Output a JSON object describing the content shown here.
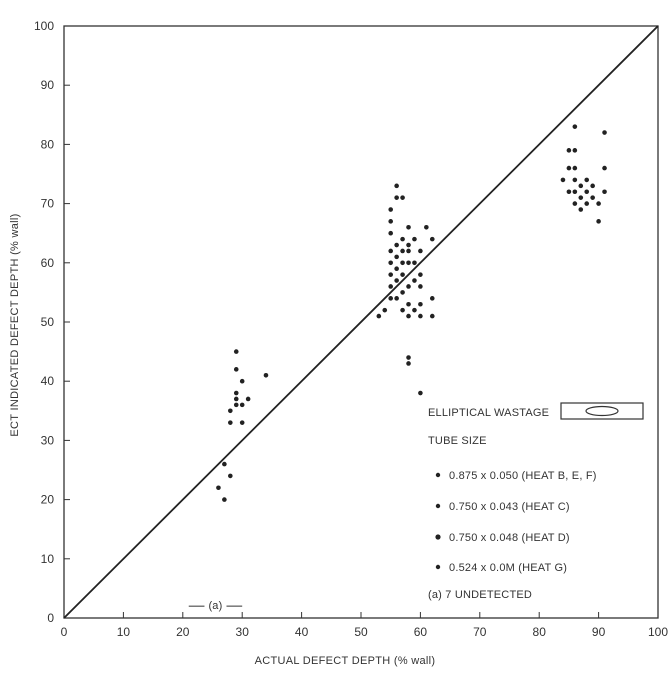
{
  "chart_data": {
    "type": "scatter",
    "xlabel": "ACTUAL DEFECT DEPTH (% wall)",
    "ylabel": "ECT INDICATED DEFECT DEPTH (% wall)",
    "xlim": [
      0,
      100
    ],
    "ylim": [
      0,
      100
    ],
    "xticks": [
      "0",
      "10",
      "20",
      "30",
      "40",
      "50",
      "60",
      "70",
      "80",
      "90",
      "100"
    ],
    "yticks": [
      "0",
      "10",
      "20",
      "30",
      "40",
      "50",
      "60",
      "70",
      "80",
      "90",
      "100"
    ],
    "grid": false,
    "reference_line": {
      "from": [
        0,
        0
      ],
      "to": [
        100,
        100
      ]
    },
    "legend": {
      "placement": "lower-right",
      "title": "ELLIPTICAL WASTAGE",
      "subtitle": "TUBE SIZE",
      "entries": [
        "0.875 x 0.050 (HEAT B, E, F)",
        "0.750 x 0.043 (HEAT C)",
        "0.750 x 0.048 (HEAT D)",
        "0.524 x 0.0M (HEAT G)"
      ],
      "footnote": "(a) 7 UNDETECTED"
    },
    "annotation": {
      "text": "(a)",
      "x_range": [
        21,
        30
      ],
      "y": 2
    },
    "points": [
      [
        27,
        26
      ],
      [
        26,
        22
      ],
      [
        27,
        20
      ],
      [
        28,
        24
      ],
      [
        28,
        33
      ],
      [
        28,
        35
      ],
      [
        29,
        36
      ],
      [
        29,
        37
      ],
      [
        29,
        38
      ],
      [
        30,
        33
      ],
      [
        30,
        36
      ],
      [
        30,
        40
      ],
      [
        29,
        42
      ],
      [
        29,
        45
      ],
      [
        31,
        37
      ],
      [
        34,
        41
      ],
      [
        53,
        51
      ],
      [
        54,
        52
      ],
      [
        55,
        54
      ],
      [
        55,
        56
      ],
      [
        55,
        58
      ],
      [
        55,
        60
      ],
      [
        55,
        62
      ],
      [
        55,
        65
      ],
      [
        55,
        67
      ],
      [
        55,
        69
      ],
      [
        56,
        54
      ],
      [
        56,
        57
      ],
      [
        56,
        59
      ],
      [
        56,
        61
      ],
      [
        56,
        63
      ],
      [
        56,
        71
      ],
      [
        56,
        73
      ],
      [
        57,
        52
      ],
      [
        57,
        55
      ],
      [
        57,
        58
      ],
      [
        57,
        60
      ],
      [
        57,
        62
      ],
      [
        57,
        64
      ],
      [
        57,
        71
      ],
      [
        58,
        51
      ],
      [
        58,
        53
      ],
      [
        58,
        56
      ],
      [
        58,
        60
      ],
      [
        58,
        62
      ],
      [
        58,
        63
      ],
      [
        58,
        66
      ],
      [
        59,
        52
      ],
      [
        59,
        57
      ],
      [
        59,
        60
      ],
      [
        59,
        64
      ],
      [
        60,
        51
      ],
      [
        60,
        53
      ],
      [
        60,
        56
      ],
      [
        60,
        58
      ],
      [
        60,
        62
      ],
      [
        61,
        66
      ],
      [
        62,
        51
      ],
      [
        62,
        54
      ],
      [
        62,
        64
      ],
      [
        58,
        43
      ],
      [
        58,
        44
      ],
      [
        60,
        38
      ],
      [
        84,
        74
      ],
      [
        85,
        72
      ],
      [
        85,
        76
      ],
      [
        85,
        79
      ],
      [
        86,
        70
      ],
      [
        86,
        72
      ],
      [
        86,
        74
      ],
      [
        86,
        76
      ],
      [
        86,
        79
      ],
      [
        86,
        83
      ],
      [
        87,
        69
      ],
      [
        87,
        71
      ],
      [
        87,
        73
      ],
      [
        88,
        70
      ],
      [
        88,
        72
      ],
      [
        88,
        74
      ],
      [
        89,
        71
      ],
      [
        89,
        73
      ],
      [
        90,
        67
      ],
      [
        90,
        70
      ],
      [
        91,
        72
      ],
      [
        91,
        76
      ],
      [
        91,
        82
      ]
    ]
  }
}
